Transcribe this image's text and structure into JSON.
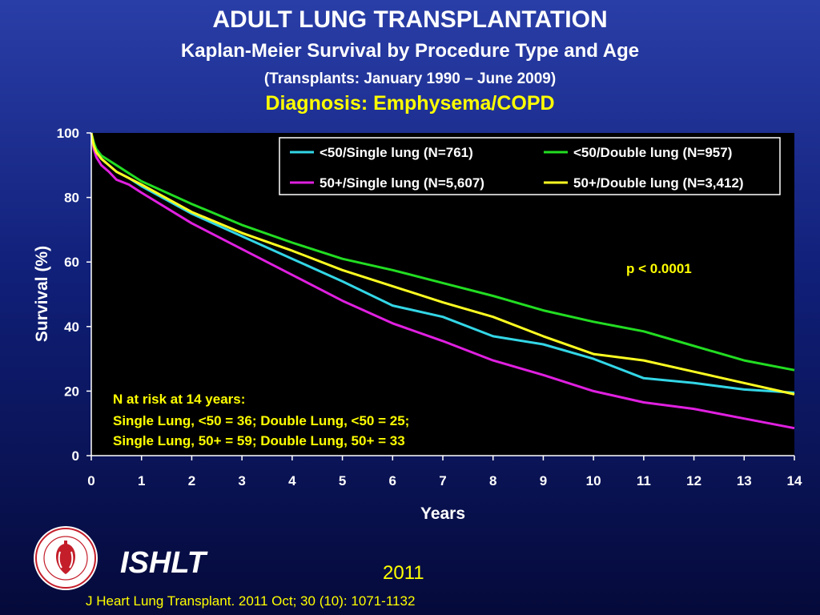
{
  "header": {
    "title": "ADULT LUNG TRANSPLANTATION",
    "subtitle": "Kaplan-Meier Survival by Procedure Type and Age",
    "period": "(Transplants: January 1990 – June 2009)",
    "diagnosis": "Diagnosis: Emphysema/COPD"
  },
  "footer": {
    "org": "ISHLT",
    "year": "2011",
    "citation": "J Heart Lung Transplant. 2011 Oct; 30 (10): 1071-1132"
  },
  "chart_data": {
    "type": "line",
    "xlabel": "Years",
    "ylabel": "Survival (%)",
    "xlim": [
      0,
      14
    ],
    "ylim": [
      0,
      100
    ],
    "xticks": [
      "0",
      "1",
      "2",
      "3",
      "4",
      "5",
      "6",
      "7",
      "8",
      "9",
      "10",
      "11",
      "12",
      "13",
      "14"
    ],
    "yticks": [
      "0",
      "20",
      "40",
      "60",
      "80",
      "100"
    ],
    "legend_position": "top-right",
    "pvalue": "p < 0.0001",
    "risk_note": [
      "N at risk at 14 years:",
      "Single Lung, <50 = 36; Double Lung, <50 = 25;",
      "Single Lung, 50+ = 59; Double Lung, 50+ = 33"
    ],
    "series": [
      {
        "name": "<50/Single lung (N=761)",
        "color": "#33d6e6",
        "x": [
          0,
          0.05,
          0.1,
          0.2,
          0.35,
          0.5,
          0.75,
          1,
          2,
          3,
          4,
          5,
          6,
          7,
          8,
          9,
          10,
          11,
          12,
          13,
          14
        ],
        "y": [
          100,
          97,
          94.5,
          92,
          90,
          88,
          86,
          83.5,
          75,
          68,
          61,
          54,
          46.5,
          43,
          37,
          34.5,
          30,
          24,
          22.5,
          20.5,
          19.5
        ]
      },
      {
        "name": "<50/Double lung (N=957)",
        "color": "#22dd22",
        "x": [
          0,
          0.05,
          0.1,
          0.2,
          0.35,
          0.5,
          0.75,
          1,
          2,
          3,
          4,
          5,
          6,
          7,
          8,
          9,
          10,
          11,
          12,
          13,
          14
        ],
        "y": [
          100,
          97,
          95,
          93,
          91.5,
          90,
          87.5,
          85,
          78,
          71.5,
          66,
          61,
          57.5,
          53.5,
          49.5,
          45,
          41.5,
          38.5,
          34,
          29.5,
          26.5
        ]
      },
      {
        "name": "50+/Single lung (N=5,607)",
        "color": "#e020e0",
        "x": [
          0,
          0.05,
          0.1,
          0.2,
          0.35,
          0.5,
          0.75,
          1,
          2,
          3,
          4,
          5,
          6,
          7,
          8,
          9,
          10,
          11,
          12,
          13,
          14
        ],
        "y": [
          100,
          95,
          92.5,
          90,
          88,
          85.5,
          84,
          81.5,
          72,
          64,
          56,
          48,
          41,
          35.5,
          29.5,
          25,
          20,
          16.5,
          14.5,
          11.5,
          8.5
        ]
      },
      {
        "name": "50+/Double lung (N=3,412)",
        "color": "#ffff22",
        "x": [
          0,
          0.05,
          0.1,
          0.2,
          0.35,
          0.5,
          0.75,
          1,
          2,
          3,
          4,
          5,
          6,
          7,
          8,
          9,
          10,
          11,
          12,
          13,
          14
        ],
        "y": [
          100,
          96,
          94,
          92,
          90,
          88,
          86,
          84,
          75.5,
          69,
          63.5,
          57.5,
          52.5,
          47.5,
          43,
          37,
          31.5,
          29.5,
          26,
          22.5,
          19
        ]
      }
    ]
  }
}
